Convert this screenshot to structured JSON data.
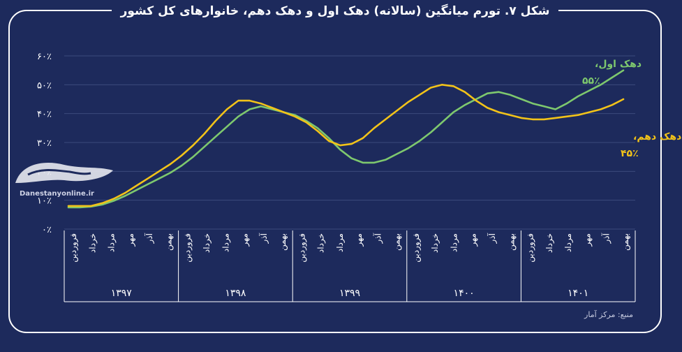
{
  "title": "شکل ۷. تورم میانگین (سالانه) دهک اول و دهک دهم، خانوارهای کل کشور",
  "source": "منبع: مرکز آمار",
  "watermark": "Danestanyonline.ir",
  "colors": {
    "background": "#1d2a5c",
    "first_decile": "#7ec86e",
    "tenth_decile": "#f2c319",
    "frame": "#ffffff"
  },
  "chart_data": {
    "type": "line",
    "title": "شکل ۷. تورم میانگین (سالانه) دهک اول و دهک دهم، خانوارهای کل کشور",
    "ylim": [
      0,
      60
    ],
    "yticks": [
      {
        "value": 0,
        "label": "۰٪"
      },
      {
        "value": 10,
        "label": "۱۰٪"
      },
      {
        "value": 20,
        "label": "۲۰٪"
      },
      {
        "value": 30,
        "label": "۳۰٪"
      },
      {
        "value": 40,
        "label": "۴۰٪"
      },
      {
        "value": 50,
        "label": "۵۰٪"
      },
      {
        "value": 60,
        "label": "۶۰٪"
      }
    ],
    "grid": true,
    "months": [
      "فروردین",
      "خرداد",
      "مرداد",
      "مهر",
      "آذر",
      "بهمن"
    ],
    "years": [
      "۱۳۹۷",
      "۱۳۹۸",
      "۱۳۹۹",
      "۱۴۰۰",
      "۱۴۰۱"
    ],
    "series": [
      {
        "name": "دهک اول",
        "label_line1": "دهک اول،",
        "label_line2": "۵۵٪",
        "color": "#7ec86e",
        "values": [
          7.5,
          7.5,
          7.8,
          8.5,
          9.8,
          11.5,
          13.5,
          15.5,
          17.5,
          19.5,
          22.0,
          25.0,
          28.5,
          32.0,
          35.5,
          39.0,
          41.5,
          42.5,
          41.5,
          40.5,
          39.5,
          37.5,
          35.0,
          31.5,
          27.5,
          24.5,
          23.0,
          23.0,
          24.0,
          26.0,
          28.0,
          30.5,
          33.5,
          37.0,
          40.5,
          43.0,
          45.0,
          47.0,
          47.5,
          46.5,
          45.0,
          43.5,
          42.5,
          41.5,
          43.5,
          46.0,
          48.0,
          50.0,
          52.5,
          55.0
        ]
      },
      {
        "name": "دهک دهم",
        "label_line1": "دهک دهم،",
        "label_line2": "۴۵٪",
        "color": "#f2c319",
        "values": [
          8.0,
          8.0,
          8.0,
          9.0,
          10.5,
          12.5,
          15.0,
          17.5,
          20.0,
          22.5,
          25.5,
          29.0,
          33.0,
          37.5,
          41.5,
          44.5,
          44.5,
          43.5,
          42.0,
          40.5,
          39.0,
          37.0,
          34.0,
          30.5,
          29.0,
          29.5,
          31.5,
          35.0,
          38.0,
          41.0,
          44.0,
          46.5,
          49.0,
          50.0,
          49.5,
          47.5,
          44.5,
          42.0,
          40.5,
          39.5,
          38.5,
          38.0,
          38.0,
          38.5,
          39.0,
          39.5,
          40.5,
          41.5,
          43.0,
          45.0
        ]
      }
    ]
  }
}
